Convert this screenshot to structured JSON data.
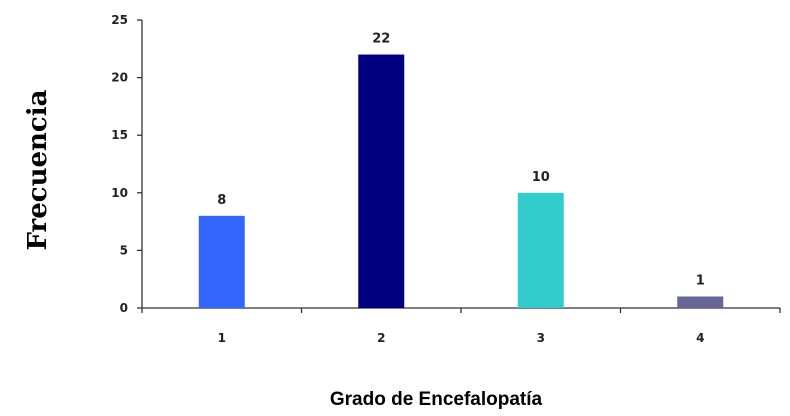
{
  "chart_data": {
    "type": "bar",
    "xlabel": "Grado de Encefalopatía",
    "ylabel": "Frecuencia",
    "categories": [
      "1",
      "2",
      "3",
      "4"
    ],
    "values": [
      8,
      22,
      10,
      1
    ],
    "data_labels": [
      "8",
      "22",
      "10",
      "1"
    ],
    "bar_colors": [
      "#3366ff",
      "#000080",
      "#33cccc",
      "#666699"
    ],
    "ylim": [
      0,
      25
    ],
    "yticks": [
      0,
      5,
      10,
      15,
      20,
      25
    ],
    "ytick_labels": [
      "0",
      "5",
      "10",
      "15",
      "20",
      "25"
    ],
    "grid": false,
    "legend": "none"
  }
}
